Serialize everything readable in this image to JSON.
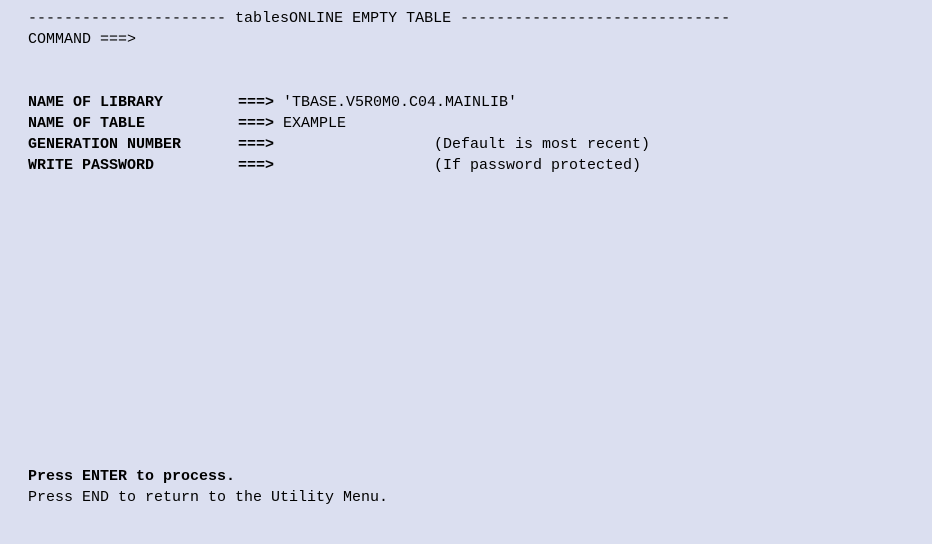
{
  "header": {
    "dashes_left": "----------------------",
    "title": " tablesONLINE EMPTY TABLE ",
    "dashes_right": "------------------------------"
  },
  "command": {
    "label": "COMMAND",
    "arrow": " ===>",
    "value": ""
  },
  "fields": {
    "library": {
      "label": "NAME OF LIBRARY",
      "arrow": "===>",
      "value": " 'TBASE.V5R0M0.C04.MAINLIB'",
      "hint": ""
    },
    "table": {
      "label": "NAME OF TABLE",
      "arrow": "===>",
      "value": " EXAMPLE",
      "hint": ""
    },
    "generation": {
      "label": "GENERATION NUMBER",
      "arrow": "===>",
      "value": "",
      "hint": "(Default is most recent)"
    },
    "password": {
      "label": "WRITE PASSWORD",
      "arrow": "===>",
      "value": "",
      "hint": "(If password protected)"
    }
  },
  "footer": {
    "line1": "Press ENTER to process.",
    "line2": "Press END to return to the Utility Menu."
  },
  "colors": {
    "background": "#dbdff0",
    "text": "#000000"
  }
}
